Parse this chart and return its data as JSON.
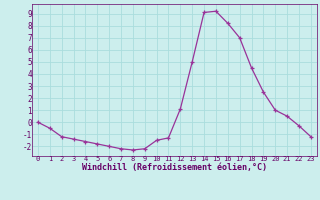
{
  "x": [
    0,
    1,
    2,
    3,
    4,
    5,
    6,
    7,
    8,
    9,
    10,
    11,
    12,
    13,
    14,
    15,
    16,
    17,
    18,
    19,
    20,
    21,
    22,
    23
  ],
  "y": [
    0,
    -0.5,
    -1.2,
    -1.4,
    -1.6,
    -1.8,
    -2.0,
    -2.2,
    -2.3,
    -2.2,
    -1.5,
    -1.3,
    1.1,
    5.0,
    9.1,
    9.2,
    8.2,
    7.0,
    4.5,
    2.5,
    1.0,
    0.5,
    -0.3,
    -1.2
  ],
  "line_color": "#993399",
  "marker": "+",
  "markersize": 3,
  "linewidth": 0.9,
  "markeredgewidth": 0.9,
  "bg_color": "#cceeed",
  "grid_color": "#aadddd",
  "xlabel": "Windchill (Refroidissement éolien,°C)",
  "xlabel_color": "#660066",
  "tick_color": "#660066",
  "ylim": [
    -2.8,
    9.8
  ],
  "xlim": [
    -0.5,
    23.5
  ],
  "yticks": [
    -2,
    -1,
    0,
    1,
    2,
    3,
    4,
    5,
    6,
    7,
    8,
    9
  ],
  "xticks": [
    0,
    1,
    2,
    3,
    4,
    5,
    6,
    7,
    8,
    9,
    10,
    11,
    12,
    13,
    14,
    15,
    16,
    17,
    18,
    19,
    20,
    21,
    22,
    23
  ]
}
